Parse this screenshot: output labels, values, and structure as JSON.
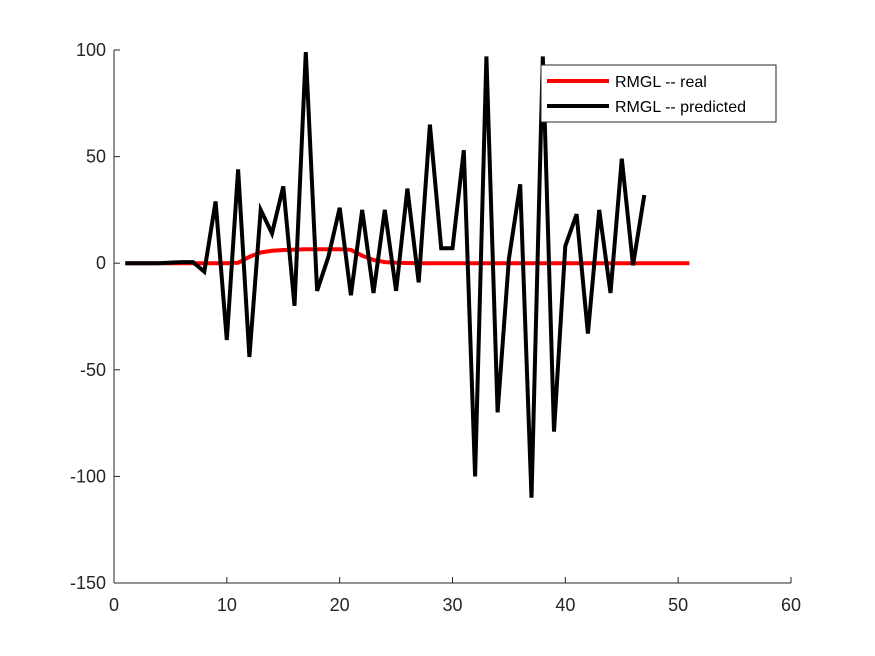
{
  "chart_data": {
    "type": "line",
    "title": "",
    "xlabel": "",
    "ylabel": "",
    "xlim": [
      0,
      60
    ],
    "ylim": [
      -150,
      100
    ],
    "xticks": [
      0,
      10,
      20,
      30,
      40,
      50,
      60
    ],
    "yticks": [
      -150,
      -100,
      -50,
      0,
      50,
      100
    ],
    "xtick_labels": [
      "0",
      "10",
      "20",
      "30",
      "40",
      "50",
      "60"
    ],
    "ytick_labels": [
      "-150",
      "-100",
      "-50",
      "0",
      "50",
      "100"
    ],
    "grid": false,
    "legend_position": "top-right",
    "series": [
      {
        "name": "RMGL -- real",
        "color": "#ff0000",
        "x": [
          1,
          2,
          3,
          4,
          5,
          6,
          7,
          8,
          9,
          10,
          11,
          12,
          13,
          14,
          15,
          16,
          17,
          18,
          19,
          20,
          21,
          22,
          23,
          24,
          25,
          26,
          27,
          28,
          29,
          30,
          31,
          32,
          33,
          34,
          35,
          36,
          37,
          38,
          39,
          40,
          41,
          42,
          43,
          44,
          45,
          46,
          47,
          48,
          49,
          50,
          51
        ],
        "values": [
          0,
          0,
          0,
          0,
          0,
          0,
          0,
          0,
          0,
          0,
          0.2,
          3,
          5,
          5.8,
          6.2,
          6.4,
          6.5,
          6.5,
          6.5,
          6.5,
          6.3,
          3.5,
          1.5,
          0.5,
          0.2,
          0.1,
          0,
          0,
          0,
          0,
          0,
          0,
          0,
          0,
          0,
          0,
          0,
          0,
          0,
          0,
          0,
          0,
          0,
          0,
          0,
          0,
          0,
          0,
          0,
          0,
          0
        ]
      },
      {
        "name": "RMGL -- predicted",
        "color": "#000000",
        "x": [
          1,
          2,
          3,
          4,
          5,
          6,
          7,
          8,
          9,
          10,
          11,
          12,
          13,
          14,
          15,
          16,
          17,
          18,
          19,
          20,
          21,
          22,
          23,
          24,
          25,
          26,
          27,
          28,
          29,
          30,
          31,
          32,
          33,
          34,
          35,
          36,
          37,
          38,
          39,
          40,
          41,
          42,
          43,
          44,
          45,
          46,
          47
        ],
        "values": [
          0,
          0,
          0,
          0,
          0.3,
          0.5,
          0.5,
          -4,
          29,
          -36,
          44,
          -44,
          25,
          14,
          36,
          -20,
          99,
          -13,
          3,
          26,
          -15,
          25,
          -14,
          25,
          -13,
          35,
          -9,
          65,
          7,
          7,
          53,
          -100,
          97,
          -70,
          2,
          37,
          -110,
          97,
          -79,
          8,
          23,
          -33,
          25,
          -14,
          49,
          -1,
          32
        ]
      }
    ]
  }
}
